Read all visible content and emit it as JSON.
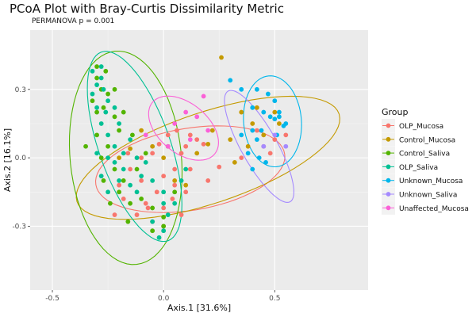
{
  "chart_data": {
    "type": "scatter",
    "title": "PCoA Plot with Bray-Curtis Dissimilarity Metric",
    "subtitle": "PERMANOVA p = 0.001",
    "xlabel": "Axis.1   [31.6%]",
    "ylabel": "Axis.2   [16.1%]",
    "xlim": [
      -0.6,
      0.92
    ],
    "ylim": [
      -0.58,
      0.56
    ],
    "x_ticks": [
      -0.5,
      0.0,
      0.5
    ],
    "x_tick_labels": [
      "-0.5",
      "0.0",
      "0.5"
    ],
    "y_ticks": [
      -0.3,
      0.0,
      0.3
    ],
    "y_tick_labels": [
      "-0.3",
      "0.0",
      "0.3"
    ],
    "grid": true,
    "legend": {
      "title": "Group",
      "position": "right"
    },
    "series": [
      {
        "name": "OLP_Mucosa",
        "color": "#F8766D",
        "ellipse": {
          "cx": 0.12,
          "cy": -0.05,
          "rx": 0.43,
          "ry": 0.18,
          "angle_deg": 9
        },
        "points": [
          [
            -0.2,
            -0.12
          ],
          [
            -0.15,
            -0.05
          ],
          [
            -0.1,
            0.0
          ],
          [
            -0.05,
            0.02
          ],
          [
            0.0,
            -0.08
          ],
          [
            0.05,
            -0.12
          ],
          [
            0.1,
            -0.15
          ],
          [
            -0.08,
            -0.2
          ],
          [
            -0.12,
            -0.25
          ],
          [
            0.0,
            -0.22
          ],
          [
            0.05,
            -0.05
          ],
          [
            0.1,
            0.05
          ],
          [
            0.15,
            0.08
          ],
          [
            0.08,
            0.02
          ],
          [
            -0.03,
            -0.15
          ],
          [
            -0.18,
            -0.18
          ],
          [
            -0.22,
            -0.25
          ],
          [
            0.02,
            0.1
          ],
          [
            0.06,
            0.12
          ],
          [
            0.12,
            -0.05
          ],
          [
            0.2,
            -0.1
          ],
          [
            -0.05,
            -0.28
          ],
          [
            0.0,
            -0.3
          ],
          [
            0.04,
            -0.18
          ],
          [
            -0.1,
            -0.1
          ],
          [
            0.08,
            -0.25
          ],
          [
            -0.16,
            0.02
          ],
          [
            0.18,
            0.06
          ],
          [
            0.25,
            -0.04
          ],
          [
            0.45,
            0.05
          ],
          [
            0.5,
            0.08
          ],
          [
            0.48,
            0.02
          ],
          [
            0.55,
            0.1
          ],
          [
            0.42,
            0.12
          ],
          [
            0.35,
            0.0
          ],
          [
            -0.02,
            0.06
          ],
          [
            0.12,
            0.1
          ],
          [
            -0.07,
            -0.22
          ]
        ]
      },
      {
        "name": "Control_Mucosa",
        "color": "#C49A00",
        "ellipse": {
          "cx": 0.2,
          "cy": 0.0,
          "rx": 0.62,
          "ry": 0.2,
          "angle_deg": 18
        },
        "points": [
          [
            0.26,
            0.44
          ],
          [
            -0.1,
            0.12
          ],
          [
            -0.05,
            0.05
          ],
          [
            0.0,
            0.0
          ],
          [
            0.05,
            -0.1
          ],
          [
            0.1,
            -0.12
          ],
          [
            0.15,
            0.02
          ],
          [
            0.2,
            0.06
          ],
          [
            0.3,
            0.08
          ],
          [
            0.4,
            0.15
          ],
          [
            0.45,
            0.1
          ],
          [
            0.38,
            0.05
          ],
          [
            -0.15,
            0.04
          ],
          [
            0.35,
            0.2
          ],
          [
            0.42,
            0.22
          ],
          [
            0.5,
            0.2
          ],
          [
            0.52,
            0.15
          ],
          [
            0.32,
            -0.02
          ],
          [
            0.22,
            0.12
          ],
          [
            -0.2,
            0.0
          ]
        ]
      },
      {
        "name": "Control_Saliva",
        "color": "#53B400",
        "ellipse": {
          "cx": -0.17,
          "cy": 0.0,
          "rx": 0.47,
          "ry": 0.25,
          "angle_deg": -84
        },
        "points": [
          [
            -0.3,
            0.35
          ],
          [
            -0.28,
            0.3
          ],
          [
            -0.32,
            0.25
          ],
          [
            -0.25,
            0.28
          ],
          [
            -0.27,
            0.22
          ],
          [
            -0.3,
            0.2
          ],
          [
            -0.22,
            0.18
          ],
          [
            -0.2,
            0.12
          ],
          [
            -0.25,
            0.05
          ],
          [
            -0.28,
            0.0
          ],
          [
            -0.22,
            -0.05
          ],
          [
            -0.18,
            -0.1
          ],
          [
            -0.2,
            -0.15
          ],
          [
            -0.15,
            -0.2
          ],
          [
            -0.1,
            -0.18
          ],
          [
            -0.05,
            -0.22
          ],
          [
            0.0,
            -0.26
          ],
          [
            -0.3,
            0.1
          ],
          [
            -0.35,
            0.05
          ],
          [
            -0.27,
            -0.1
          ],
          [
            -0.24,
            -0.2
          ],
          [
            -0.12,
            -0.05
          ],
          [
            -0.08,
            0.02
          ],
          [
            -0.14,
            0.1
          ],
          [
            -0.18,
            0.2
          ],
          [
            -0.22,
            0.3
          ],
          [
            -0.3,
            0.4
          ],
          [
            -0.26,
            0.38
          ],
          [
            0.05,
            -0.15
          ],
          [
            0.0,
            -0.3
          ],
          [
            -0.05,
            -0.32
          ],
          [
            -0.16,
            -0.28
          ],
          [
            0.02,
            0.05
          ]
        ]
      },
      {
        "name": "OLP_Saliva",
        "color": "#00C094",
        "ellipse": {
          "cx": -0.13,
          "cy": 0.05,
          "rx": 0.44,
          "ry": 0.16,
          "angle_deg": -70
        },
        "points": [
          [
            -0.3,
            0.32
          ],
          [
            -0.32,
            0.28
          ],
          [
            -0.28,
            0.35
          ],
          [
            -0.27,
            0.3
          ],
          [
            -0.25,
            0.25
          ],
          [
            -0.3,
            0.22
          ],
          [
            -0.28,
            0.15
          ],
          [
            -0.25,
            0.1
          ],
          [
            -0.22,
            0.05
          ],
          [
            -0.25,
            0.0
          ],
          [
            -0.22,
            -0.02
          ],
          [
            -0.18,
            -0.05
          ],
          [
            -0.2,
            -0.1
          ],
          [
            -0.15,
            -0.12
          ],
          [
            -0.12,
            -0.15
          ],
          [
            -0.1,
            -0.08
          ],
          [
            -0.05,
            -0.1
          ],
          [
            0.0,
            -0.15
          ],
          [
            0.05,
            -0.2
          ],
          [
            0.02,
            -0.25
          ],
          [
            0.0,
            -0.32
          ],
          [
            -0.05,
            -0.28
          ],
          [
            -0.28,
            -0.08
          ],
          [
            -0.3,
            0.02
          ],
          [
            -0.25,
            -0.15
          ],
          [
            -0.18,
            0.02
          ],
          [
            -0.15,
            0.08
          ],
          [
            -0.2,
            0.15
          ],
          [
            -0.22,
            0.22
          ],
          [
            -0.26,
            0.2
          ],
          [
            -0.32,
            0.38
          ],
          [
            -0.28,
            0.4
          ],
          [
            -0.08,
            -0.02
          ],
          [
            0.1,
            -0.05
          ],
          [
            0.08,
            -0.1
          ],
          [
            -0.02,
            -0.35
          ],
          [
            0.0,
            -0.2
          ],
          [
            -0.12,
            0.0
          ]
        ]
      },
      {
        "name": "Unknown_Mucosa",
        "color": "#00B6EB",
        "ellipse": {
          "cx": 0.49,
          "cy": 0.16,
          "rx": 0.2,
          "ry": 0.13,
          "angle_deg": -85
        },
        "points": [
          [
            0.3,
            0.34
          ],
          [
            0.35,
            0.3
          ],
          [
            0.4,
            0.22
          ],
          [
            0.45,
            0.2
          ],
          [
            0.48,
            0.18
          ],
          [
            0.5,
            0.17
          ],
          [
            0.52,
            0.2
          ],
          [
            0.55,
            0.15
          ],
          [
            0.42,
            0.08
          ],
          [
            0.38,
            0.02
          ],
          [
            0.4,
            -0.05
          ],
          [
            0.44,
            0.12
          ],
          [
            0.5,
            0.25
          ],
          [
            0.47,
            0.28
          ],
          [
            0.42,
            0.3
          ],
          [
            0.52,
            0.18
          ],
          [
            0.35,
            0.1
          ],
          [
            0.46,
            -0.02
          ],
          [
            0.4,
            0.12
          ],
          [
            0.54,
            0.14
          ],
          [
            0.51,
            0.1
          ],
          [
            0.43,
            0.0
          ]
        ]
      },
      {
        "name": "Unknown_Saliva",
        "color": "#A58AFF",
        "ellipse": {
          "cx": 0.43,
          "cy": 0.05,
          "rx": 0.28,
          "ry": 0.08,
          "angle_deg": -60
        },
        "points": [
          [
            0.5,
            0.1
          ],
          [
            0.45,
            0.05
          ],
          [
            0.55,
            0.05
          ]
        ]
      },
      {
        "name": "Unaffected_Mucosa",
        "color": "#FB61D7",
        "ellipse": {
          "cx": 0.09,
          "cy": 0.13,
          "rx": 0.18,
          "ry": 0.11,
          "angle_deg": -38
        },
        "points": [
          [
            0.18,
            0.27
          ],
          [
            0.1,
            0.2
          ],
          [
            0.05,
            0.15
          ],
          [
            0.12,
            0.08
          ],
          [
            0.02,
            0.05
          ],
          [
            -0.08,
            0.1
          ],
          [
            0.15,
            0.18
          ],
          [
            0.2,
            0.12
          ]
        ]
      }
    ]
  }
}
